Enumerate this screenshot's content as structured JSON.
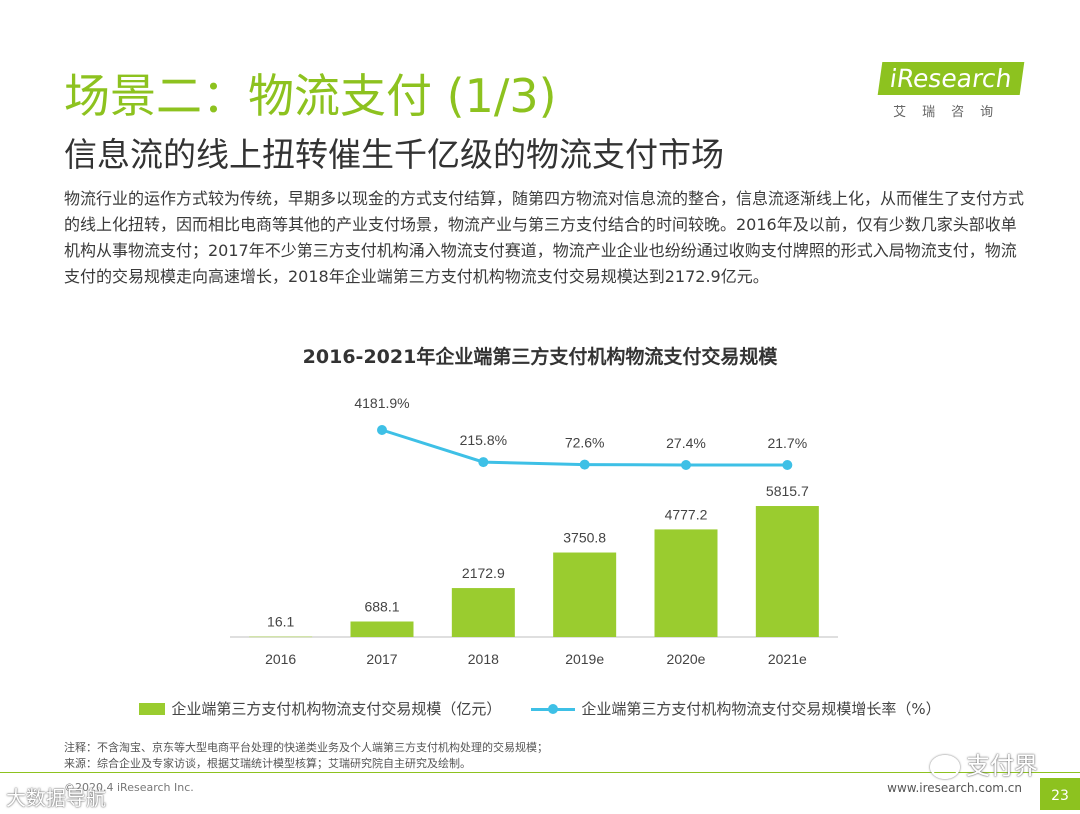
{
  "header": {
    "title": "场景二：物流支付 (1/3)",
    "subtitle": "信息流的线上扭转催生千亿级的物流支付市场",
    "body": "物流行业的运作方式较为传统，早期多以现金的方式支付结算，随第四方物流对信息流的整合，信息流逐渐线上化，从而催生了支付方式的线上化扭转，因而相比电商等其他的产业支付场景，物流产业与第三方支付结合的时间较晚。2016年及以前，仅有少数几家头部收单机构从事物流支付；2017年不少第三方支付机构涌入物流支付赛道，物流产业企业也纷纷通过收购支付牌照的形式入局物流支付，物流支付的交易规模走向高速增长，2018年企业端第三方支付机构物流支付交易规模达到2172.9亿元。"
  },
  "logo": {
    "main": "iResearch",
    "sub": "艾瑞咨询"
  },
  "chart_data": {
    "type": "bar",
    "title": "2016-2021年企业端第三方支付机构物流支付交易规模",
    "categories": [
      "2016",
      "2017",
      "2018",
      "2019e",
      "2020e",
      "2021e"
    ],
    "series": [
      {
        "name": "企业端第三方支付机构物流支付交易规模（亿元）",
        "type": "bar",
        "values": [
          16.1,
          688.1,
          2172.9,
          3750.8,
          4777.2,
          5815.7
        ],
        "labels": [
          "16.1",
          "688.1",
          "2172.9",
          "3750.8",
          "4777.2",
          "5815.7"
        ]
      },
      {
        "name": "企业端第三方支付机构物流支付交易规模增长率（%）",
        "type": "line",
        "values": [
          null,
          4181.9,
          215.8,
          72.6,
          27.4,
          21.7
        ],
        "labels": [
          "",
          "4181.9%",
          "215.8%",
          "72.6%",
          "27.4%",
          "21.7%"
        ]
      }
    ],
    "xlabel": "",
    "ylabel": "",
    "ylim": [
      0,
      6500
    ]
  },
  "colors": {
    "accent": "#8dc21f",
    "bar": "#9acc2f",
    "line": "#3ec0e6"
  },
  "notes": {
    "note": "注释：不含淘宝、京东等大型电商平台处理的快递类业务及个人端第三方支付机构处理的交易规模；",
    "source": "来源：综合企业及专家访谈，根据艾瑞统计模型核算；艾瑞研究院自主研究及绘制。"
  },
  "footer": {
    "copyright": "©2020.4 iResearch Inc.",
    "website": "www.iresearch.com.cn",
    "page": "23"
  },
  "watermarks": {
    "right": "支付界",
    "left": "大数据导航"
  }
}
